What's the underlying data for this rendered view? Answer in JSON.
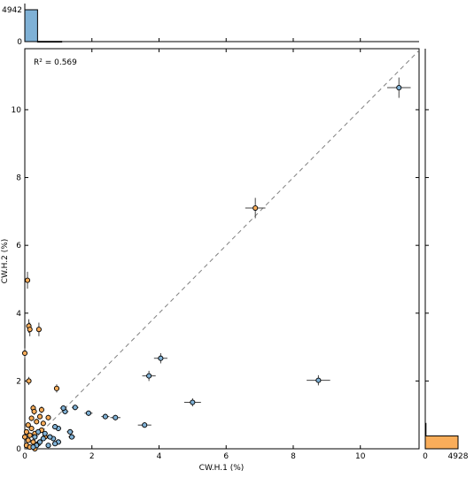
{
  "chart_data": {
    "type": "scatter",
    "xlabel": "CW.H.1 (%)",
    "ylabel": "CW.H.2 (%)",
    "xlim": [
      0,
      11.75
    ],
    "ylim": [
      0,
      11.8
    ],
    "xticks": [
      "0",
      "2",
      "4",
      "6",
      "8",
      "10"
    ],
    "yticks": [
      "0",
      "2",
      "4",
      "6",
      "8",
      "10"
    ],
    "annotation": "R² = 0.569",
    "diagonal": true,
    "colors": {
      "blue": "#7fb1d6",
      "orange": "#f9ad5a",
      "diag": "#808080"
    },
    "blue_points": [
      {
        "x": 11.15,
        "y": 10.65,
        "xe": 0.35,
        "ye": 0.3
      },
      {
        "x": 8.75,
        "y": 2.02,
        "xe": 0.35,
        "ye": 0.15
      },
      {
        "x": 5.0,
        "y": 1.37,
        "xe": 0.25,
        "ye": 0.12
      },
      {
        "x": 4.05,
        "y": 2.67,
        "xe": 0.2,
        "ye": 0.15
      },
      {
        "x": 3.7,
        "y": 2.15,
        "xe": 0.2,
        "ye": 0.15
      },
      {
        "x": 3.57,
        "y": 0.7,
        "xe": 0.2,
        "ye": 0.08
      },
      {
        "x": 2.7,
        "y": 0.92,
        "xe": 0.15,
        "ye": 0.08
      },
      {
        "x": 2.4,
        "y": 0.95,
        "xe": 0.12,
        "ye": 0.08
      },
      {
        "x": 1.9,
        "y": 1.05,
        "xe": 0.12,
        "ye": 0.08
      },
      {
        "x": 1.5,
        "y": 1.22,
        "xe": 0.1,
        "ye": 0.08
      },
      {
        "x": 1.2,
        "y": 1.1,
        "xe": 0.1,
        "ye": 0.08
      },
      {
        "x": 1.15,
        "y": 1.2,
        "xe": 0.1,
        "ye": 0.08
      },
      {
        "x": 1.35,
        "y": 0.5,
        "xe": 0.1,
        "ye": 0.05
      },
      {
        "x": 1.4,
        "y": 0.35,
        "xe": 0.1,
        "ye": 0.05
      },
      {
        "x": 1.0,
        "y": 0.6,
        "xe": 0.08,
        "ye": 0.05
      },
      {
        "x": 0.9,
        "y": 0.65,
        "xe": 0.08,
        "ye": 0.05
      },
      {
        "x": 1.0,
        "y": 0.2,
        "xe": 0.08,
        "ye": 0.05
      },
      {
        "x": 0.85,
        "y": 0.3,
        "xe": 0.08,
        "ye": 0.05
      },
      {
        "x": 0.9,
        "y": 0.15,
        "xe": 0.08,
        "ye": 0.05
      },
      {
        "x": 0.75,
        "y": 0.35,
        "xe": 0.08,
        "ye": 0.05
      },
      {
        "x": 0.7,
        "y": 0.1,
        "xe": 0.08,
        "ye": 0.05
      },
      {
        "x": 0.6,
        "y": 0.45,
        "xe": 0.08,
        "ye": 0.05
      },
      {
        "x": 0.55,
        "y": 0.3,
        "xe": 0.08,
        "ye": 0.05
      },
      {
        "x": 0.45,
        "y": 0.2,
        "xe": 0.05,
        "ye": 0.05
      },
      {
        "x": 0.35,
        "y": 0.1,
        "xe": 0.05,
        "ye": 0.05
      },
      {
        "x": 0.3,
        "y": 0.35,
        "xe": 0.05,
        "ye": 0.05
      },
      {
        "x": 0.25,
        "y": 0.05,
        "xe": 0.05,
        "ye": 0.05
      },
      {
        "x": 0.4,
        "y": 0.5,
        "xe": 0.05,
        "ye": 0.05
      }
    ],
    "orange_points": [
      {
        "x": 6.87,
        "y": 7.1,
        "xe": 0.3,
        "ye": 0.3
      },
      {
        "x": 0.08,
        "y": 4.97,
        "xe": 0.05,
        "ye": 0.25
      },
      {
        "x": 0.12,
        "y": 3.62,
        "xe": 0.05,
        "ye": 0.2
      },
      {
        "x": 0.15,
        "y": 3.52,
        "xe": 0.05,
        "ye": 0.2
      },
      {
        "x": 0.42,
        "y": 3.52,
        "xe": 0.05,
        "ye": 0.2
      },
      {
        "x": 0.0,
        "y": 2.82,
        "xe": 0.05,
        "ye": 0.15
      },
      {
        "x": 0.12,
        "y": 2.0,
        "xe": 0.05,
        "ye": 0.12
      },
      {
        "x": 0.95,
        "y": 1.78,
        "xe": 0.08,
        "ye": 0.12
      },
      {
        "x": 0.25,
        "y": 1.2,
        "xe": 0.05,
        "ye": 0.1
      },
      {
        "x": 0.28,
        "y": 1.1,
        "xe": 0.05,
        "ye": 0.1
      },
      {
        "x": 0.5,
        "y": 1.15,
        "xe": 0.05,
        "ye": 0.1
      },
      {
        "x": 0.45,
        "y": 0.95,
        "xe": 0.05,
        "ye": 0.08
      },
      {
        "x": 0.7,
        "y": 0.92,
        "xe": 0.05,
        "ye": 0.08
      },
      {
        "x": 0.35,
        "y": 0.8,
        "xe": 0.05,
        "ye": 0.08
      },
      {
        "x": 0.55,
        "y": 0.75,
        "xe": 0.05,
        "ye": 0.08
      },
      {
        "x": 0.1,
        "y": 0.7,
        "xe": 0.05,
        "ye": 0.08
      },
      {
        "x": 0.2,
        "y": 0.6,
        "xe": 0.05,
        "ye": 0.05
      },
      {
        "x": 0.5,
        "y": 0.55,
        "xe": 0.05,
        "ye": 0.05
      },
      {
        "x": 0.05,
        "y": 0.5,
        "xe": 0.05,
        "ye": 0.05
      },
      {
        "x": 0.15,
        "y": 0.4,
        "xe": 0.05,
        "ye": 0.05
      },
      {
        "x": 0.3,
        "y": 0.45,
        "xe": 0.05,
        "ye": 0.05
      },
      {
        "x": 0.6,
        "y": 0.35,
        "xe": 0.05,
        "ye": 0.05
      },
      {
        "x": 0.1,
        "y": 0.25,
        "xe": 0.05,
        "ye": 0.05
      },
      {
        "x": 0.25,
        "y": 0.2,
        "xe": 0.05,
        "ye": 0.05
      },
      {
        "x": 0.4,
        "y": 0.15,
        "xe": 0.05,
        "ye": 0.05
      },
      {
        "x": 0.05,
        "y": 0.1,
        "xe": 0.05,
        "ye": 0.05
      },
      {
        "x": 0.15,
        "y": 0.05,
        "xe": 0.05,
        "ye": 0.05
      },
      {
        "x": 0.3,
        "y": 0.0,
        "xe": 0.05,
        "ye": 0.05
      },
      {
        "x": 0.0,
        "y": 0.35,
        "xe": 0.05,
        "ye": 0.05
      },
      {
        "x": 0.2,
        "y": 0.9,
        "xe": 0.05,
        "ye": 0.08
      }
    ],
    "top_histogram": {
      "max_label": "4942",
      "zero_label": "0",
      "bars": [
        {
          "x0": 0,
          "x1": 0.38,
          "count": 4942
        },
        {
          "x0": 0.38,
          "x1": 1.1,
          "count": 35
        }
      ]
    },
    "right_histogram": {
      "max_label": "4928",
      "zero_label": "0",
      "bars": [
        {
          "y0": 0,
          "y1": 0.38,
          "count": 4928
        },
        {
          "y0": 0.38,
          "y1": 0.75,
          "count": 40
        }
      ]
    }
  }
}
